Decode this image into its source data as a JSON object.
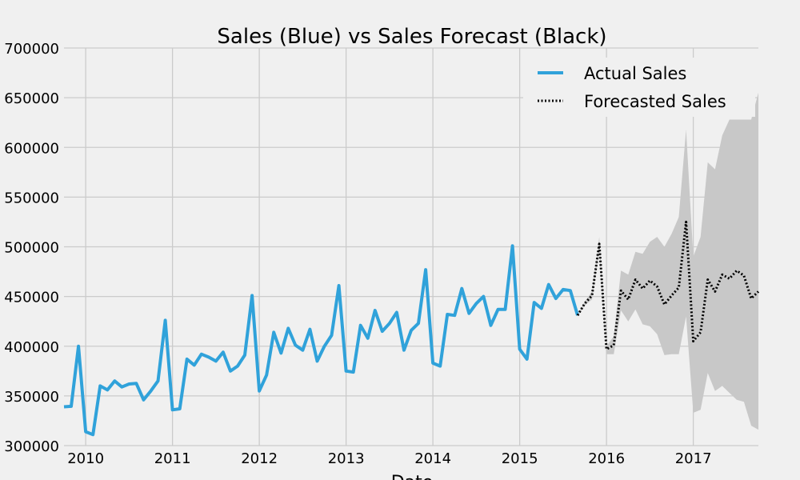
{
  "chart_data": {
    "type": "line",
    "title": "Sales (Blue) vs Sales Forecast (Black)",
    "xlabel": "Date",
    "ylabel": "",
    "ylim": [
      300000,
      700000
    ],
    "xlim": [
      "2009-10",
      "2017-10"
    ],
    "x_ticks": [
      "2010",
      "2011",
      "2012",
      "2013",
      "2014",
      "2015",
      "2016",
      "2017"
    ],
    "y_ticks": [
      "300000",
      "350000",
      "400000",
      "450000",
      "500000",
      "550000",
      "600000",
      "650000",
      "700000"
    ],
    "grid": true,
    "legend_position": "top-right",
    "colors": {
      "background": "#f0f0f0",
      "grid": "#cbcbcb",
      "actual": "#30a2da",
      "forecast": "#000000",
      "confidence_band": "#c8c8c8"
    },
    "series": [
      {
        "name": "Actual Sales",
        "style": "solid",
        "points": [
          [
            "2009-10",
            339000
          ],
          [
            "2009-11",
            339500
          ],
          [
            "2009-12",
            400000
          ],
          [
            "2010-01",
            314000
          ],
          [
            "2010-02",
            311000
          ],
          [
            "2010-03",
            360000
          ],
          [
            "2010-04",
            356000
          ],
          [
            "2010-05",
            365000
          ],
          [
            "2010-06",
            359000
          ],
          [
            "2010-07",
            362000
          ],
          [
            "2010-08",
            362500
          ],
          [
            "2010-09",
            346000
          ],
          [
            "2010-10",
            355000
          ],
          [
            "2010-11",
            365000
          ],
          [
            "2010-12",
            426000
          ],
          [
            "2011-01",
            336000
          ],
          [
            "2011-02",
            337000
          ],
          [
            "2011-03",
            387000
          ],
          [
            "2011-04",
            381000
          ],
          [
            "2011-05",
            392000
          ],
          [
            "2011-06",
            389000
          ],
          [
            "2011-07",
            385000
          ],
          [
            "2011-08",
            394000
          ],
          [
            "2011-09",
            375000
          ],
          [
            "2011-10",
            380000
          ],
          [
            "2011-11",
            391000
          ],
          [
            "2011-12",
            451000
          ],
          [
            "2012-01",
            355000
          ],
          [
            "2012-02",
            371000
          ],
          [
            "2012-03",
            414000
          ],
          [
            "2012-04",
            393000
          ],
          [
            "2012-05",
            418000
          ],
          [
            "2012-06",
            401000
          ],
          [
            "2012-07",
            396000
          ],
          [
            "2012-08",
            417000
          ],
          [
            "2012-09",
            385000
          ],
          [
            "2012-10",
            400000
          ],
          [
            "2012-11",
            411000
          ],
          [
            "2012-12",
            461000
          ],
          [
            "2013-01",
            375000
          ],
          [
            "2013-02",
            374000
          ],
          [
            "2013-03",
            421000
          ],
          [
            "2013-04",
            408000
          ],
          [
            "2013-05",
            436000
          ],
          [
            "2013-06",
            415000
          ],
          [
            "2013-07",
            423000
          ],
          [
            "2013-08",
            434000
          ],
          [
            "2013-09",
            396000
          ],
          [
            "2013-10",
            416000
          ],
          [
            "2013-11",
            423000
          ],
          [
            "2013-12",
            477000
          ],
          [
            "2014-01",
            383000
          ],
          [
            "2014-02",
            380000
          ],
          [
            "2014-03",
            432000
          ],
          [
            "2014-04",
            431000
          ],
          [
            "2014-05",
            458000
          ],
          [
            "2014-06",
            433000
          ],
          [
            "2014-07",
            443000
          ],
          [
            "2014-08",
            450000
          ],
          [
            "2014-09",
            421000
          ],
          [
            "2014-10",
            437000
          ],
          [
            "2014-11",
            437000
          ],
          [
            "2014-12",
            501000
          ],
          [
            "2015-01",
            397000
          ],
          [
            "2015-02",
            387000
          ],
          [
            "2015-03",
            444000
          ],
          [
            "2015-04",
            438000
          ],
          [
            "2015-05",
            462000
          ],
          [
            "2015-06",
            448000
          ],
          [
            "2015-07",
            457000
          ],
          [
            "2015-08",
            456000
          ],
          [
            "2015-09",
            431000
          ]
        ]
      },
      {
        "name": "Forecasted Sales",
        "style": "dotted",
        "points": [
          [
            "2015-09",
            431000
          ],
          [
            "2015-10",
            443000
          ],
          [
            "2015-11",
            451000
          ],
          [
            "2015-12",
            503000
          ],
          [
            "2016-01",
            397000
          ],
          [
            "2016-02",
            401000
          ],
          [
            "2016-03",
            456000
          ],
          [
            "2016-04",
            447000
          ],
          [
            "2016-05",
            467000
          ],
          [
            "2016-06",
            458000
          ],
          [
            "2016-07",
            466000
          ],
          [
            "2016-08",
            460000
          ],
          [
            "2016-09",
            442000
          ],
          [
            "2016-10",
            451000
          ],
          [
            "2016-11",
            459000
          ],
          [
            "2016-12",
            525000
          ],
          [
            "2017-01",
            405000
          ],
          [
            "2017-02",
            414000
          ],
          [
            "2017-03",
            467000
          ],
          [
            "2017-04",
            455000
          ],
          [
            "2017-05",
            472000
          ],
          [
            "2017-06",
            468000
          ],
          [
            "2017-07",
            476000
          ],
          [
            "2017-08",
            471000
          ],
          [
            "2017-09",
            448000
          ],
          [
            "2017-10",
            455000
          ]
        ]
      }
    ],
    "confidence_interval": {
      "upper": [
        [
          "2015-09",
          432000
        ],
        [
          "2015-10",
          445000
        ],
        [
          "2015-11",
          455000
        ],
        [
          "2015-12",
          510000
        ],
        [
          "2016-01",
          400000
        ],
        [
          "2016-02",
          410000
        ],
        [
          "2016-03",
          476000
        ],
        [
          "2016-04",
          472000
        ],
        [
          "2016-05",
          495000
        ],
        [
          "2016-06",
          493000
        ],
        [
          "2016-07",
          505000
        ],
        [
          "2016-08",
          510000
        ],
        [
          "2016-09",
          500000
        ],
        [
          "2016-10",
          513000
        ],
        [
          "2016-11",
          530000
        ],
        [
          "2016-12",
          618000
        ],
        [
          "2017-01",
          490000
        ],
        [
          "2017-02",
          510000
        ],
        [
          "2017-03",
          585000
        ],
        [
          "2017-04",
          578000
        ],
        [
          "2017-05",
          612000
        ],
        [
          "2017-06",
          628000
        ],
        [
          "2017-07",
          628000
        ],
        [
          "2017-08",
          628000
        ],
        [
          "2017-09",
          628000
        ],
        [
          "2017-10",
          655000
        ]
      ],
      "lower": [
        [
          "2015-09",
          430000
        ],
        [
          "2015-10",
          441000
        ],
        [
          "2015-11",
          447000
        ],
        [
          "2015-12",
          496000
        ],
        [
          "2016-01",
          392000
        ],
        [
          "2016-02",
          392000
        ],
        [
          "2016-03",
          436000
        ],
        [
          "2016-04",
          425000
        ],
        [
          "2016-05",
          437000
        ],
        [
          "2016-06",
          422000
        ],
        [
          "2016-07",
          420000
        ],
        [
          "2016-08",
          412000
        ],
        [
          "2016-09",
          391000
        ],
        [
          "2016-10",
          392000
        ],
        [
          "2016-11",
          392000
        ],
        [
          "2016-12",
          430000
        ],
        [
          "2017-01",
          333000
        ],
        [
          "2017-02",
          336000
        ],
        [
          "2017-03",
          373000
        ],
        [
          "2017-04",
          355000
        ],
        [
          "2017-05",
          360000
        ],
        [
          "2017-06",
          353000
        ],
        [
          "2017-07",
          346000
        ],
        [
          "2017-08",
          344000
        ],
        [
          "2017-09",
          320000
        ],
        [
          "2017-10",
          316000
        ]
      ]
    }
  }
}
